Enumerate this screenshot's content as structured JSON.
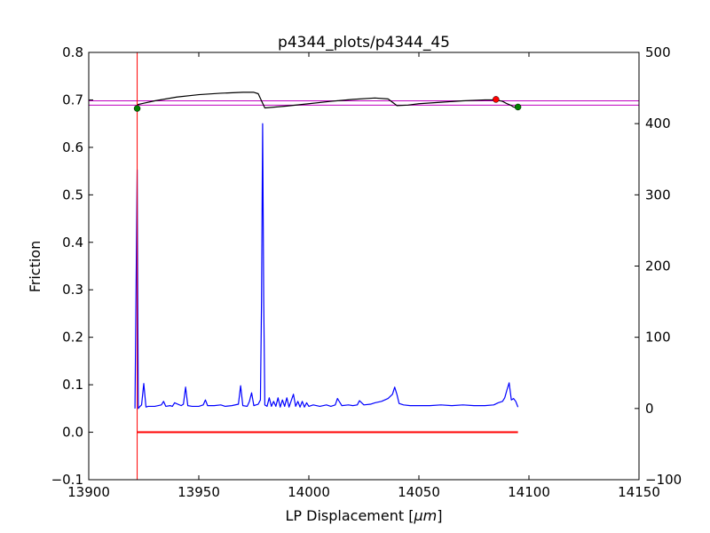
{
  "chart_data": {
    "type": "line",
    "title": "p4344_plots/p4344_45",
    "xlabel": "LP Displacement [",
    "xlabel_math": "μm",
    "xlabel_end": "]",
    "ylabel_left": "Friction",
    "ylabel_right": "",
    "xlim": [
      13900,
      14150
    ],
    "ylim_left": [
      -0.1,
      0.8
    ],
    "ylim_right": [
      -100,
      500
    ],
    "x_ticks": [
      "13900",
      "13950",
      "14000",
      "14050",
      "14100",
      "14150"
    ],
    "y_left_ticks": [
      "−0.1",
      "0.0",
      "0.1",
      "0.2",
      "0.3",
      "0.4",
      "0.5",
      "0.6",
      "0.7",
      "0.8"
    ],
    "y_right_ticks": [
      "−100",
      "0",
      "100",
      "200",
      "300",
      "400",
      "500"
    ],
    "grid": false,
    "colors": {
      "friction": "#000000",
      "secondary": "#0000ff",
      "zero_line": "#ff0000",
      "vline": "#ff0000",
      "hlines": "#bf00bf",
      "marker_green": "#008000",
      "marker_red": "#ff0000"
    },
    "series": [
      {
        "axis": "left",
        "color": "#000000",
        "x": [
          13922,
          13925,
          13930,
          13940,
          13950,
          13960,
          13970,
          13975,
          13977,
          13978,
          13980,
          13990,
          14000,
          14010,
          14020,
          14030,
          14036,
          14038,
          14040,
          14045,
          14050,
          14060,
          14070,
          14080,
          14085,
          14088,
          14090,
          14092,
          14093,
          14095
        ],
        "y": [
          0.69,
          0.693,
          0.698,
          0.706,
          0.711,
          0.714,
          0.716,
          0.716,
          0.713,
          0.703,
          0.683,
          0.687,
          0.692,
          0.697,
          0.701,
          0.704,
          0.702,
          0.695,
          0.688,
          0.689,
          0.692,
          0.695,
          0.698,
          0.7,
          0.7,
          0.697,
          0.692,
          0.688,
          0.685,
          0.683
        ]
      },
      {
        "axis": "right",
        "color": "#0000ff",
        "x": [
          13921,
          13922,
          13922.5,
          13923,
          13924,
          13925,
          13926,
          13927,
          13930,
          13933,
          13934,
          13935,
          13937,
          13938,
          13939,
          13942,
          13943,
          13944,
          13945,
          13947,
          13950,
          13952,
          13953,
          13954,
          13957,
          13960,
          13962,
          13965,
          13968,
          13969,
          13970,
          13972,
          13973,
          13974,
          13975,
          13976,
          13977,
          13978,
          13978.5,
          13979,
          13979.5,
          13980,
          13981,
          13982,
          13983,
          13984,
          13985,
          13986,
          13987,
          13988,
          13989,
          13990,
          13991,
          13993,
          13994,
          13995,
          13996,
          13997,
          13998,
          13999,
          14000,
          14002,
          14005,
          14008,
          14010,
          14012,
          14013,
          14015,
          14018,
          14020,
          14022,
          14023,
          14025,
          14028,
          14030,
          14033,
          14036,
          14038,
          14039,
          14040,
          14041,
          14043,
          14046,
          14050,
          14055,
          14060,
          14065,
          14070,
          14075,
          14080,
          14084,
          14086,
          14088,
          14089,
          14090,
          14091,
          14092,
          14093,
          14094,
          14095
        ],
        "y": [
          0,
          335,
          0,
          2,
          5,
          35,
          2,
          3,
          3,
          5,
          10,
          3,
          4,
          3,
          8,
          4,
          6,
          30,
          4,
          3,
          3,
          5,
          12,
          4,
          4,
          5,
          3,
          4,
          6,
          32,
          4,
          3,
          10,
          22,
          4,
          5,
          6,
          12,
          150,
          400,
          150,
          5,
          3,
          15,
          3,
          10,
          3,
          15,
          2,
          12,
          3,
          15,
          2,
          20,
          3,
          10,
          2,
          10,
          2,
          8,
          3,
          5,
          3,
          5,
          3,
          5,
          14,
          4,
          5,
          4,
          5,
          11,
          5,
          6,
          8,
          10,
          14,
          20,
          30,
          20,
          7,
          5,
          4,
          4,
          4,
          5,
          4,
          5,
          4,
          4,
          5,
          8,
          10,
          15,
          26,
          36,
          12,
          14,
          10,
          2
        ]
      },
      {
        "axis": "left",
        "color": "#ff0000",
        "x": [
          13922,
          14095
        ],
        "y": [
          0.0,
          0.0
        ]
      }
    ],
    "vertical_lines": [
      13922
    ],
    "horizontal_lines_left": [
      0.698,
      0.689
    ],
    "markers": [
      {
        "x": 13922,
        "y": 0.682,
        "color": "#008000"
      },
      {
        "x": 14085,
        "y": 0.701,
        "color": "#ff0000"
      },
      {
        "x": 14095,
        "y": 0.685,
        "color": "#008000"
      }
    ]
  }
}
